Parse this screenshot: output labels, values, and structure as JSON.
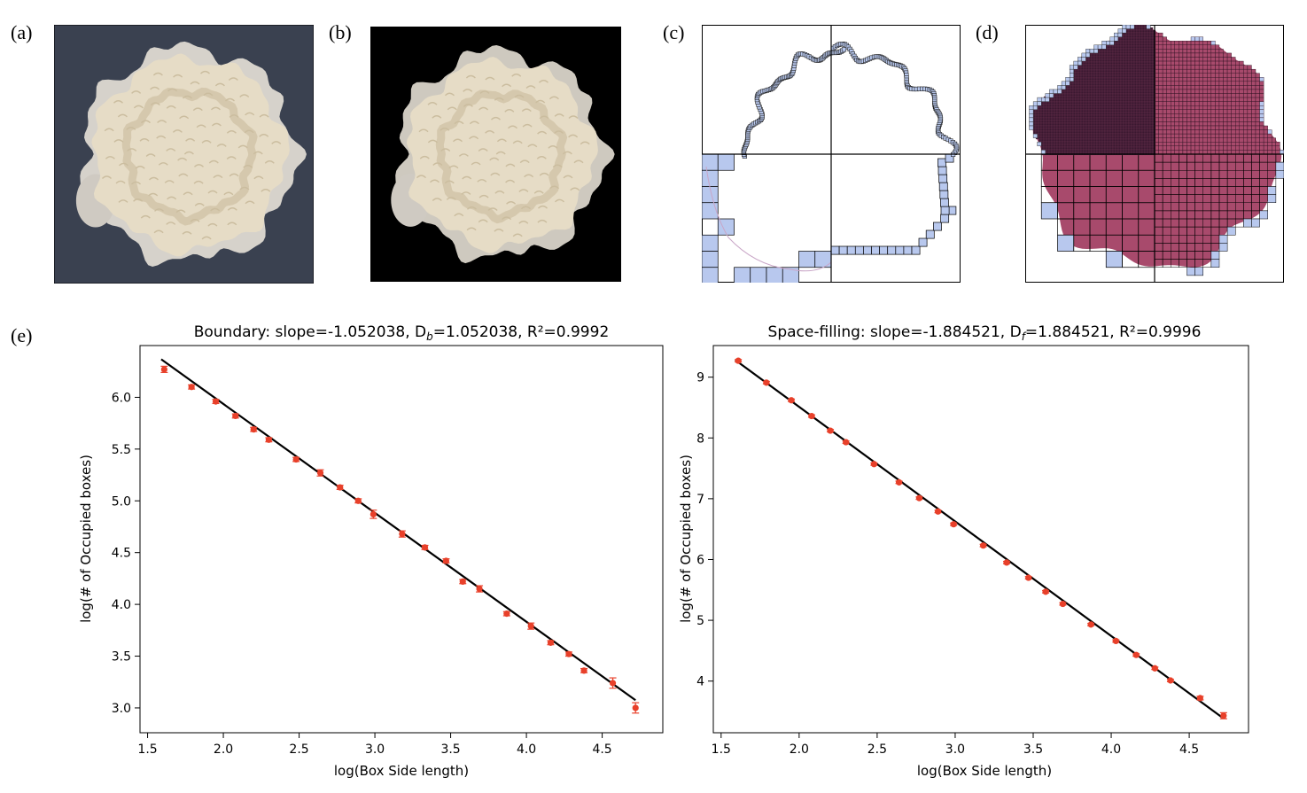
{
  "panel_labels": {
    "a": "(a)",
    "b": "(b)",
    "c": "(c)",
    "d": "(d)",
    "e": "(e)"
  },
  "colors": {
    "colony_fill": "#e6dcc6",
    "colony_edge": "#f2ece0",
    "bg_a": "#3a4150",
    "bg_b": "#000000",
    "box_fill": "#b8c8ee",
    "colony_area": "#a84a6c",
    "dark_area": "#3a1830",
    "marker": "#e8402a",
    "fit_line": "#000000"
  },
  "chart_data": [
    {
      "type": "scatter",
      "title_prefix": "Boundary: slope=-1.052038, D",
      "title_sub": "b",
      "title_suffix": "=1.052038, R²=0.9992",
      "xlabel": "log(Box Side length)",
      "ylabel": "log(# of Occupied boxes)",
      "xlim": [
        1.45,
        4.9
      ],
      "ylim": [
        2.76,
        6.5
      ],
      "xticks": [
        1.5,
        2.0,
        2.5,
        3.0,
        3.5,
        4.0,
        4.5
      ],
      "yticks": [
        3.0,
        3.5,
        4.0,
        4.5,
        5.0,
        5.5,
        6.0
      ],
      "x": [
        1.61,
        1.79,
        1.95,
        2.08,
        2.2,
        2.3,
        2.48,
        2.64,
        2.77,
        2.89,
        2.99,
        3.18,
        3.33,
        3.47,
        3.58,
        3.69,
        3.87,
        4.03,
        4.16,
        4.28,
        4.38,
        4.57,
        4.72
      ],
      "y": [
        6.27,
        6.1,
        5.96,
        5.82,
        5.69,
        5.59,
        5.4,
        5.27,
        5.13,
        5.0,
        4.87,
        4.68,
        4.55,
        4.42,
        4.22,
        4.15,
        3.91,
        3.79,
        3.63,
        3.52,
        3.36,
        3.24,
        3.0
      ],
      "err": [
        0.03,
        0.02,
        0.02,
        0.02,
        0.02,
        0.02,
        0.02,
        0.03,
        0.02,
        0.02,
        0.04,
        0.03,
        0.02,
        0.02,
        0.02,
        0.03,
        0.02,
        0.03,
        0.02,
        0.02,
        0.02,
        0.05,
        0.05
      ],
      "fit": {
        "slope": -1.052038,
        "intercept": 8.04,
        "x_range": [
          1.61,
          4.72
        ]
      }
    },
    {
      "type": "scatter",
      "title_prefix": "Space-filling: slope=-1.884521, D",
      "title_sub": "f",
      "title_suffix": "=1.884521, R²=0.9996",
      "xlabel": "log(Box Side length)",
      "ylabel": "log(# of Occupied boxes)",
      "xlim": [
        1.45,
        4.88
      ],
      "ylim": [
        3.15,
        9.52
      ],
      "xticks": [
        1.5,
        2.0,
        2.5,
        3.0,
        3.5,
        4.0,
        4.5
      ],
      "yticks": [
        4,
        5,
        6,
        7,
        8,
        9
      ],
      "x": [
        1.61,
        1.79,
        1.95,
        2.08,
        2.2,
        2.3,
        2.48,
        2.64,
        2.77,
        2.89,
        2.99,
        3.18,
        3.33,
        3.47,
        3.58,
        3.69,
        3.87,
        4.03,
        4.16,
        4.28,
        4.38,
        4.57,
        4.72
      ],
      "y": [
        9.27,
        8.91,
        8.62,
        8.36,
        8.12,
        7.93,
        7.57,
        7.27,
        7.01,
        6.79,
        6.58,
        6.23,
        5.95,
        5.7,
        5.47,
        5.27,
        4.93,
        4.66,
        4.43,
        4.21,
        4.01,
        3.72,
        3.43
      ],
      "err": [
        0.02,
        0.02,
        0.02,
        0.02,
        0.02,
        0.02,
        0.02,
        0.02,
        0.02,
        0.02,
        0.02,
        0.02,
        0.02,
        0.02,
        0.02,
        0.02,
        0.02,
        0.02,
        0.02,
        0.02,
        0.02,
        0.03,
        0.05
      ],
      "fit": {
        "slope": -1.884521,
        "intercept": 12.28,
        "x_range": [
          1.61,
          4.72
        ]
      }
    }
  ]
}
